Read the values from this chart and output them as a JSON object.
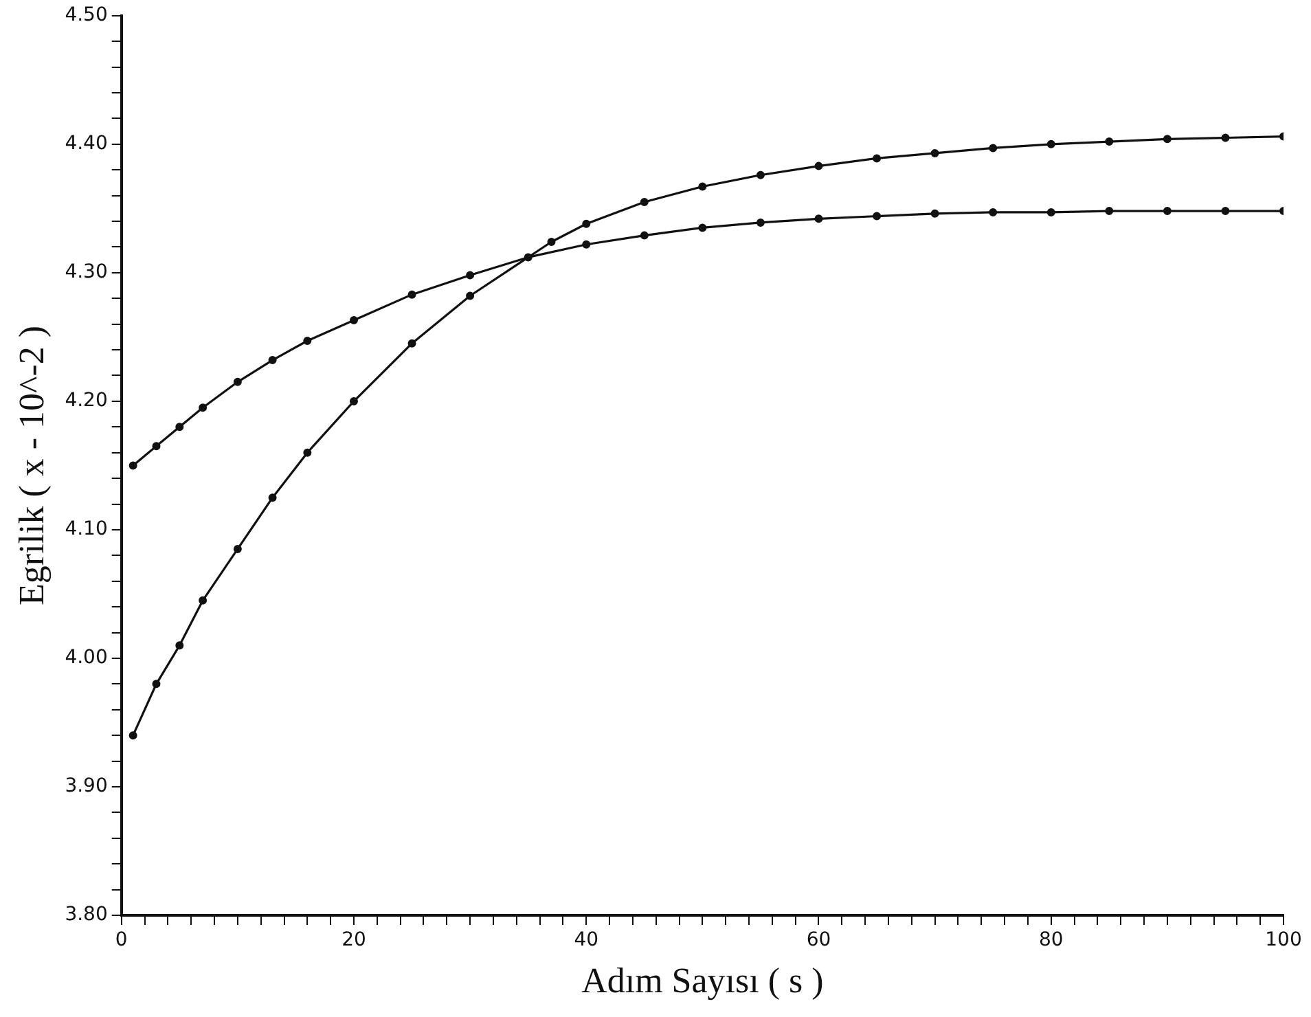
{
  "chart_data": {
    "type": "line",
    "xlabel": "Adım Sayısı ( s )",
    "ylabel": "Egrilik ( x - 10^-2 )",
    "xlim": [
      0,
      100
    ],
    "ylim": [
      3.8,
      4.5
    ],
    "xticks": [
      0,
      {
        "value": 2,
        "label": null
      },
      {
        "value": 4,
        "label": null
      },
      {
        "value": 6,
        "label": null
      },
      {
        "value": 8,
        "label": null
      },
      {
        "value": 10,
        "label": null
      },
      {
        "value": 12,
        "label": null
      },
      {
        "value": 14,
        "label": null
      },
      {
        "value": 16,
        "label": null
      },
      {
        "value": 18,
        "label": null
      },
      20,
      {
        "value": 22,
        "label": null
      },
      {
        "value": 24,
        "label": null
      },
      {
        "value": 26,
        "label": null
      },
      {
        "value": 28,
        "label": null
      },
      {
        "value": 30,
        "label": null
      },
      {
        "value": 32,
        "label": null
      },
      {
        "value": 34,
        "label": null
      },
      {
        "value": 36,
        "label": null
      },
      {
        "value": 38,
        "label": null
      },
      40,
      {
        "value": 42,
        "label": null
      },
      {
        "value": 44,
        "label": null
      },
      {
        "value": 46,
        "label": null
      },
      {
        "value": 48,
        "label": null
      },
      {
        "value": 50,
        "label": null
      },
      {
        "value": 52,
        "label": null
      },
      {
        "value": 54,
        "label": null
      },
      {
        "value": 56,
        "label": null
      },
      {
        "value": 58,
        "label": null
      },
      60,
      {
        "value": 62,
        "label": null
      },
      {
        "value": 64,
        "label": null
      },
      {
        "value": 66,
        "label": null
      },
      {
        "value": 68,
        "label": null
      },
      {
        "value": 70,
        "label": null
      },
      {
        "value": 72,
        "label": null
      },
      {
        "value": 74,
        "label": null
      },
      {
        "value": 76,
        "label": null
      },
      {
        "value": 78,
        "label": null
      },
      80,
      {
        "value": 82,
        "label": null
      },
      {
        "value": 84,
        "label": null
      },
      {
        "value": 86,
        "label": null
      },
      {
        "value": 88,
        "label": null
      },
      {
        "value": 90,
        "label": null
      },
      {
        "value": 92,
        "label": null
      },
      {
        "value": 94,
        "label": null
      },
      {
        "value": 96,
        "label": null
      },
      {
        "value": 98,
        "label": null
      },
      100
    ],
    "yticks": [
      {
        "value": 3.8,
        "label": "3.80"
      },
      {
        "value": 3.82,
        "label": null
      },
      {
        "value": 3.84,
        "label": null
      },
      {
        "value": 3.86,
        "label": null
      },
      {
        "value": 3.88,
        "label": null
      },
      {
        "value": 3.9,
        "label": "3.90"
      },
      {
        "value": 3.92,
        "label": null
      },
      {
        "value": 3.94,
        "label": null
      },
      {
        "value": 3.96,
        "label": null
      },
      {
        "value": 3.98,
        "label": null
      },
      {
        "value": 4.0,
        "label": "4.00"
      },
      {
        "value": 4.02,
        "label": null
      },
      {
        "value": 4.04,
        "label": null
      },
      {
        "value": 4.06,
        "label": null
      },
      {
        "value": 4.08,
        "label": null
      },
      {
        "value": 4.1,
        "label": "4.10"
      },
      {
        "value": 4.12,
        "label": null
      },
      {
        "value": 4.14,
        "label": null
      },
      {
        "value": 4.16,
        "label": null
      },
      {
        "value": 4.18,
        "label": null
      },
      {
        "value": 4.2,
        "label": "4.20"
      },
      {
        "value": 4.22,
        "label": null
      },
      {
        "value": 4.24,
        "label": null
      },
      {
        "value": 4.26,
        "label": null
      },
      {
        "value": 4.28,
        "label": null
      },
      {
        "value": 4.3,
        "label": "4.30"
      },
      {
        "value": 4.32,
        "label": null
      },
      {
        "value": 4.34,
        "label": null
      },
      {
        "value": 4.36,
        "label": null
      },
      {
        "value": 4.38,
        "label": null
      },
      {
        "value": 4.4,
        "label": "4.40"
      },
      {
        "value": 4.42,
        "label": null
      },
      {
        "value": 4.44,
        "label": null
      },
      {
        "value": 4.46,
        "label": null
      },
      {
        "value": 4.48,
        "label": null
      },
      {
        "value": 4.5,
        "label": "4.50"
      }
    ],
    "grid": false,
    "legend": false,
    "marker": "circle",
    "line_style": "solid",
    "series": [
      {
        "color": "#111111",
        "x": [
          1,
          3,
          5,
          7,
          10,
          13,
          16,
          20,
          25,
          30,
          35,
          40,
          45,
          50,
          55,
          60,
          65,
          70,
          75,
          80,
          85,
          90,
          95,
          100
        ],
        "values": [
          4.15,
          4.165,
          4.18,
          4.195,
          4.215,
          4.232,
          4.247,
          4.263,
          4.283,
          4.298,
          4.312,
          4.322,
          4.329,
          4.335,
          4.339,
          4.342,
          4.344,
          4.346,
          4.347,
          4.347,
          4.348,
          4.348,
          4.348,
          4.348
        ]
      },
      {
        "color": "#111111",
        "x": [
          1,
          3,
          5,
          7,
          10,
          13,
          16,
          20,
          25,
          30,
          37,
          40,
          45,
          50,
          55,
          60,
          65,
          70,
          75,
          80,
          85,
          90,
          95,
          100
        ],
        "values": [
          3.94,
          3.98,
          4.01,
          4.045,
          4.085,
          4.125,
          4.16,
          4.2,
          4.245,
          4.282,
          4.324,
          4.338,
          4.355,
          4.367,
          4.376,
          4.383,
          4.389,
          4.393,
          4.397,
          4.4,
          4.402,
          4.404,
          4.405,
          4.406
        ]
      }
    ]
  }
}
